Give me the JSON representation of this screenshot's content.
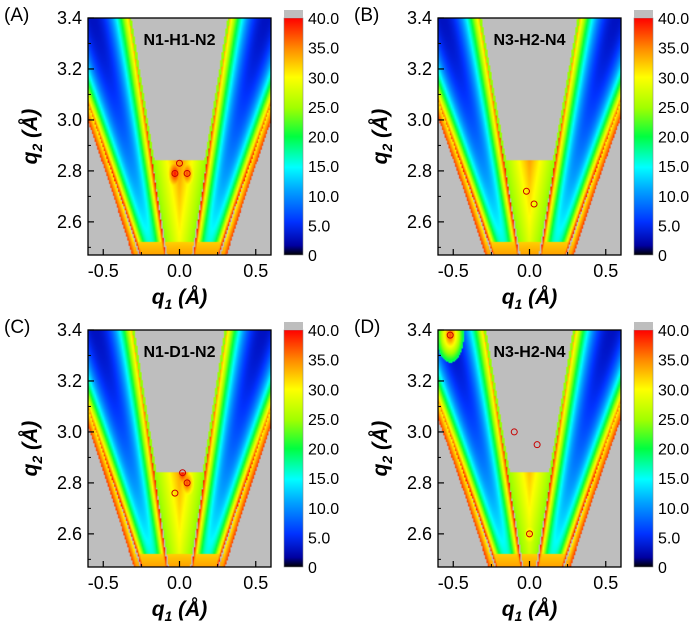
{
  "chart_data": [
    {
      "type": "heatmap",
      "panel_label": "(A)",
      "title": "N1-H1-N2",
      "xlabel": "q1 (Å)",
      "ylabel": "q2 (Å)",
      "xlim": [
        -0.6,
        0.6
      ],
      "ylim": [
        2.47,
        3.4
      ],
      "xticks": [
        "-0.5",
        "0.0",
        "0.5"
      ],
      "yticks": [
        "2.6",
        "2.8",
        "3.0",
        "3.2",
        "3.4"
      ],
      "colorbar": {
        "min": 0,
        "max": 40,
        "ticks": [
          "0",
          "5.0",
          "10.0",
          "15.0",
          "20.0",
          "25.0",
          "30.0",
          "35.0",
          "40.0"
        ]
      },
      "ridge": {
        "width_top": 0.2,
        "v_left_top": -0.33,
        "v_left_bottom": -0.08,
        "v_right_top": 0.33,
        "v_right_bottom": 0.08
      },
      "hot_spots": [
        {
          "q1": -0.03,
          "q2": 2.79,
          "value": 40
        },
        {
          "q1": 0.05,
          "q2": 2.79,
          "value": 38
        },
        {
          "q1": 0.0,
          "q2": 2.83,
          "value": 33
        }
      ]
    },
    {
      "type": "heatmap",
      "panel_label": "(B)",
      "title": "N3-H2-N4",
      "xlabel": "q1 (Å)",
      "ylabel": "q2 (Å)",
      "xlim": [
        -0.6,
        0.6
      ],
      "ylim": [
        2.47,
        3.4
      ],
      "xticks": [
        "-0.5",
        "0.0",
        "0.5"
      ],
      "yticks": [
        "2.6",
        "2.8",
        "3.0",
        "3.2",
        "3.4"
      ],
      "colorbar": {
        "min": 0,
        "max": 40,
        "ticks": [
          "0",
          "5.0",
          "10.0",
          "15.0",
          "20.0",
          "25.0",
          "30.0",
          "35.0",
          "40.0"
        ]
      },
      "ridge": {
        "width_top": 0.2,
        "v_left_top": -0.33,
        "v_left_bottom": -0.06,
        "v_right_top": 0.33,
        "v_right_bottom": 0.06
      },
      "hot_spots": [
        {
          "q1": -0.02,
          "q2": 2.72,
          "value": 30
        },
        {
          "q1": 0.03,
          "q2": 2.67,
          "value": 28
        }
      ]
    },
    {
      "type": "heatmap",
      "panel_label": "(C)",
      "title": "N1-D1-N2",
      "xlabel": "q1 (Å)",
      "ylabel": "q2 (Å)",
      "xlim": [
        -0.6,
        0.6
      ],
      "ylim": [
        2.47,
        3.4
      ],
      "xticks": [
        "-0.5",
        "0.0",
        "0.5"
      ],
      "yticks": [
        "2.6",
        "2.8",
        "3.0",
        "3.2",
        "3.4"
      ],
      "colorbar": {
        "min": 0,
        "max": 40,
        "ticks": [
          "0",
          "5.0",
          "10.0",
          "15.0",
          "20.0",
          "25.0",
          "30.0",
          "35.0",
          "40.0"
        ]
      },
      "ridge": {
        "width_top": 0.2,
        "v_left_top": -0.31,
        "v_left_bottom": -0.07,
        "v_right_top": 0.31,
        "v_right_bottom": 0.07
      },
      "hot_spots": [
        {
          "q1": 0.02,
          "q2": 2.84,
          "value": 40
        },
        {
          "q1": 0.05,
          "q2": 2.8,
          "value": 38
        },
        {
          "q1": -0.03,
          "q2": 2.76,
          "value": 32
        }
      ]
    },
    {
      "type": "heatmap",
      "panel_label": "(D)",
      "title": "N3-H2-N4",
      "xlabel": "q1 (Å)",
      "ylabel": "q2 (Å)",
      "xlim": [
        -0.6,
        0.6
      ],
      "ylim": [
        2.47,
        3.4
      ],
      "xticks": [
        "-0.5",
        "0.0",
        "0.5"
      ],
      "yticks": [
        "2.6",
        "2.8",
        "3.0",
        "3.2",
        "3.4"
      ],
      "colorbar": {
        "min": 0,
        "max": 40,
        "ticks": [
          "0",
          "5.0",
          "10.0",
          "15.0",
          "20.0",
          "25.0",
          "30.0",
          "35.0",
          "40.0"
        ]
      },
      "ridge": {
        "width_top": 0.16,
        "v_left_top": -0.3,
        "v_left_bottom": -0.04,
        "v_right_top": 0.3,
        "v_right_bottom": 0.04
      },
      "hot_spots": [
        {
          "q1": -0.1,
          "q2": 3.0,
          "value": 36
        },
        {
          "q1": 0.05,
          "q2": 2.95,
          "value": 34
        },
        {
          "q1": -0.52,
          "q2": 3.38,
          "value": 38
        },
        {
          "q1": 0.0,
          "q2": 2.6,
          "value": 33
        }
      ]
    }
  ]
}
